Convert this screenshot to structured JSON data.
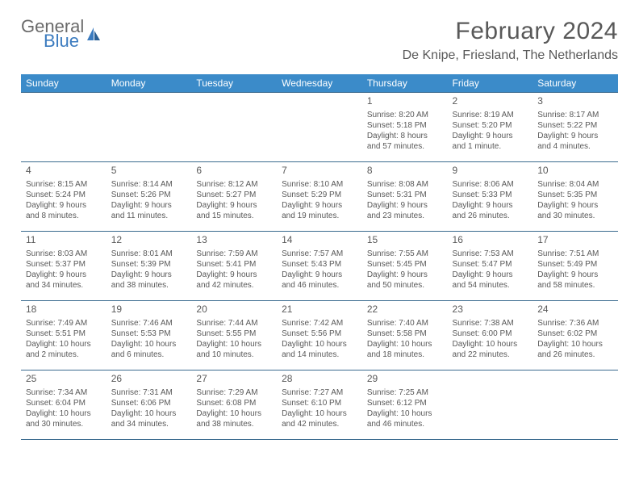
{
  "logo": {
    "word1": "General",
    "word2": "Blue"
  },
  "title": "February 2024",
  "location": "De Knipe, Friesland, The Netherlands",
  "colors": {
    "header_bg": "#3b8bc9",
    "header_text": "#ffffff",
    "cell_border": "#3b6b8f",
    "body_text": "#595959",
    "logo_gray": "#6a6a6a",
    "logo_blue": "#3b7bbf",
    "page_bg": "#ffffff"
  },
  "day_headers": [
    "Sunday",
    "Monday",
    "Tuesday",
    "Wednesday",
    "Thursday",
    "Friday",
    "Saturday"
  ],
  "weeks": [
    [
      null,
      null,
      null,
      null,
      {
        "n": "1",
        "sunrise": "8:20 AM",
        "sunset": "5:18 PM",
        "daylight": "8 hours and 57 minutes."
      },
      {
        "n": "2",
        "sunrise": "8:19 AM",
        "sunset": "5:20 PM",
        "daylight": "9 hours and 1 minute."
      },
      {
        "n": "3",
        "sunrise": "8:17 AM",
        "sunset": "5:22 PM",
        "daylight": "9 hours and 4 minutes."
      }
    ],
    [
      {
        "n": "4",
        "sunrise": "8:15 AM",
        "sunset": "5:24 PM",
        "daylight": "9 hours and 8 minutes."
      },
      {
        "n": "5",
        "sunrise": "8:14 AM",
        "sunset": "5:26 PM",
        "daylight": "9 hours and 11 minutes."
      },
      {
        "n": "6",
        "sunrise": "8:12 AM",
        "sunset": "5:27 PM",
        "daylight": "9 hours and 15 minutes."
      },
      {
        "n": "7",
        "sunrise": "8:10 AM",
        "sunset": "5:29 PM",
        "daylight": "9 hours and 19 minutes."
      },
      {
        "n": "8",
        "sunrise": "8:08 AM",
        "sunset": "5:31 PM",
        "daylight": "9 hours and 23 minutes."
      },
      {
        "n": "9",
        "sunrise": "8:06 AM",
        "sunset": "5:33 PM",
        "daylight": "9 hours and 26 minutes."
      },
      {
        "n": "10",
        "sunrise": "8:04 AM",
        "sunset": "5:35 PM",
        "daylight": "9 hours and 30 minutes."
      }
    ],
    [
      {
        "n": "11",
        "sunrise": "8:03 AM",
        "sunset": "5:37 PM",
        "daylight": "9 hours and 34 minutes."
      },
      {
        "n": "12",
        "sunrise": "8:01 AM",
        "sunset": "5:39 PM",
        "daylight": "9 hours and 38 minutes."
      },
      {
        "n": "13",
        "sunrise": "7:59 AM",
        "sunset": "5:41 PM",
        "daylight": "9 hours and 42 minutes."
      },
      {
        "n": "14",
        "sunrise": "7:57 AM",
        "sunset": "5:43 PM",
        "daylight": "9 hours and 46 minutes."
      },
      {
        "n": "15",
        "sunrise": "7:55 AM",
        "sunset": "5:45 PM",
        "daylight": "9 hours and 50 minutes."
      },
      {
        "n": "16",
        "sunrise": "7:53 AM",
        "sunset": "5:47 PM",
        "daylight": "9 hours and 54 minutes."
      },
      {
        "n": "17",
        "sunrise": "7:51 AM",
        "sunset": "5:49 PM",
        "daylight": "9 hours and 58 minutes."
      }
    ],
    [
      {
        "n": "18",
        "sunrise": "7:49 AM",
        "sunset": "5:51 PM",
        "daylight": "10 hours and 2 minutes."
      },
      {
        "n": "19",
        "sunrise": "7:46 AM",
        "sunset": "5:53 PM",
        "daylight": "10 hours and 6 minutes."
      },
      {
        "n": "20",
        "sunrise": "7:44 AM",
        "sunset": "5:55 PM",
        "daylight": "10 hours and 10 minutes."
      },
      {
        "n": "21",
        "sunrise": "7:42 AM",
        "sunset": "5:56 PM",
        "daylight": "10 hours and 14 minutes."
      },
      {
        "n": "22",
        "sunrise": "7:40 AM",
        "sunset": "5:58 PM",
        "daylight": "10 hours and 18 minutes."
      },
      {
        "n": "23",
        "sunrise": "7:38 AM",
        "sunset": "6:00 PM",
        "daylight": "10 hours and 22 minutes."
      },
      {
        "n": "24",
        "sunrise": "7:36 AM",
        "sunset": "6:02 PM",
        "daylight": "10 hours and 26 minutes."
      }
    ],
    [
      {
        "n": "25",
        "sunrise": "7:34 AM",
        "sunset": "6:04 PM",
        "daylight": "10 hours and 30 minutes."
      },
      {
        "n": "26",
        "sunrise": "7:31 AM",
        "sunset": "6:06 PM",
        "daylight": "10 hours and 34 minutes."
      },
      {
        "n": "27",
        "sunrise": "7:29 AM",
        "sunset": "6:08 PM",
        "daylight": "10 hours and 38 minutes."
      },
      {
        "n": "28",
        "sunrise": "7:27 AM",
        "sunset": "6:10 PM",
        "daylight": "10 hours and 42 minutes."
      },
      {
        "n": "29",
        "sunrise": "7:25 AM",
        "sunset": "6:12 PM",
        "daylight": "10 hours and 46 minutes."
      },
      null,
      null
    ]
  ],
  "labels": {
    "sunrise": "Sunrise:",
    "sunset": "Sunset:",
    "daylight": "Daylight:"
  }
}
